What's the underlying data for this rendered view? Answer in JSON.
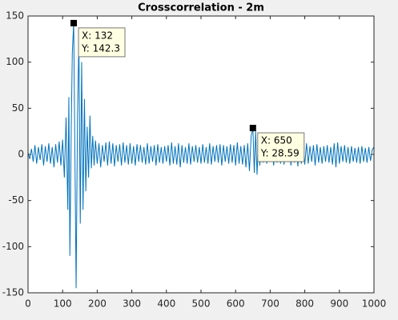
{
  "chart_data": {
    "type": "line",
    "title": "Crosscorrelation - 2m",
    "x": [
      0,
      5,
      10,
      15,
      20,
      25,
      30,
      35,
      40,
      45,
      50,
      55,
      60,
      65,
      70,
      75,
      80,
      85,
      90,
      95,
      100,
      105,
      110,
      115,
      118,
      121,
      125,
      128,
      132,
      136,
      139,
      143,
      147,
      151,
      155,
      159,
      163,
      167,
      171,
      175,
      179,
      183,
      187,
      191,
      195,
      200,
      205,
      210,
      215,
      220,
      225,
      230,
      235,
      240,
      245,
      250,
      255,
      260,
      265,
      270,
      275,
      280,
      285,
      290,
      295,
      300,
      305,
      310,
      315,
      320,
      325,
      330,
      335,
      340,
      345,
      350,
      355,
      360,
      365,
      370,
      375,
      380,
      385,
      390,
      395,
      400,
      405,
      410,
      415,
      420,
      425,
      430,
      435,
      440,
      445,
      450,
      455,
      460,
      465,
      470,
      475,
      480,
      485,
      490,
      495,
      500,
      505,
      510,
      515,
      520,
      525,
      530,
      535,
      540,
      545,
      550,
      555,
      560,
      565,
      570,
      575,
      580,
      585,
      590,
      595,
      600,
      605,
      610,
      615,
      620,
      625,
      630,
      635,
      640,
      645,
      650,
      654,
      658,
      662,
      666,
      670,
      675,
      680,
      685,
      690,
      695,
      700,
      705,
      710,
      715,
      720,
      725,
      730,
      735,
      740,
      745,
      750,
      755,
      760,
      765,
      770,
      775,
      780,
      785,
      790,
      795,
      800,
      805,
      810,
      815,
      820,
      825,
      830,
      835,
      840,
      845,
      850,
      855,
      860,
      865,
      870,
      875,
      880,
      885,
      890,
      895,
      900,
      905,
      910,
      915,
      920,
      925,
      930,
      935,
      940,
      945,
      950,
      955,
      960,
      965,
      970,
      975,
      980,
      985,
      990,
      995,
      1000
    ],
    "series": [
      {
        "name": "crosscorrelation",
        "color": "#0072bd",
        "values": [
          2,
          -5,
          6,
          -8,
          10,
          -10,
          8,
          -6,
          11,
          -12,
          9,
          -8,
          12,
          -10,
          8,
          -14,
          11,
          -9,
          14,
          -12,
          16,
          -25,
          40,
          -60,
          62,
          -110,
          30,
          110,
          142.3,
          -20,
          -145,
          40,
          125,
          -75,
          100,
          -60,
          60,
          -40,
          30,
          -25,
          42,
          -15,
          20,
          -12,
          15,
          -10,
          12,
          -14,
          10,
          -8,
          13,
          -12,
          14,
          -10,
          12,
          -13,
          10,
          -8,
          11,
          -12,
          13,
          -9,
          10,
          -11,
          12,
          -10,
          9,
          -12,
          11,
          -8,
          10,
          -9,
          8,
          -11,
          12,
          -10,
          9,
          -8,
          10,
          -12,
          11,
          -9,
          8,
          -10,
          9,
          -8,
          10,
          -12,
          13,
          -10,
          9,
          -11,
          12,
          -14,
          10,
          -9,
          8,
          -10,
          12,
          -11,
          9,
          -8,
          10,
          -9,
          8,
          -10,
          11,
          -9,
          8,
          -10,
          12,
          -11,
          9,
          -8,
          10,
          -9,
          11,
          -12,
          10,
          -8,
          9,
          -10,
          11,
          -9,
          10,
          -12,
          13,
          -10,
          9,
          -11,
          10,
          -14,
          12,
          -18,
          20,
          28.59,
          -20,
          25,
          -22,
          15,
          -12,
          10,
          -9,
          8,
          -10,
          9,
          -8,
          11,
          -12,
          10,
          -9,
          8,
          -10,
          12,
          -11,
          9,
          -8,
          10,
          -12,
          11,
          -9,
          12,
          -13,
          11,
          -10,
          9,
          -11,
          12,
          -10,
          9,
          -8,
          10,
          -12,
          11,
          -9,
          8,
          -10,
          9,
          -8,
          10,
          -9,
          8,
          -11,
          12,
          -14,
          13,
          -10,
          9,
          -8,
          10,
          -9,
          8,
          -10,
          9,
          -8,
          7,
          -9,
          8,
          -10,
          9,
          -8,
          7,
          -9,
          8,
          -7,
          5,
          8
        ]
      }
    ],
    "xlim": [
      0,
      1000
    ],
    "xticks": [
      0,
      100,
      200,
      300,
      400,
      500,
      600,
      700,
      800,
      900,
      1000
    ],
    "ylim": [
      -150,
      150
    ],
    "yticks": [
      -150,
      -100,
      -50,
      0,
      50,
      100,
      150
    ],
    "datatips": [
      {
        "x": 132,
        "y": 142.3,
        "text": [
          "X: 132",
          "Y: 142.3"
        ]
      },
      {
        "x": 650,
        "y": 28.59,
        "text": [
          "X: 650",
          "Y: 28.59"
        ]
      }
    ]
  }
}
